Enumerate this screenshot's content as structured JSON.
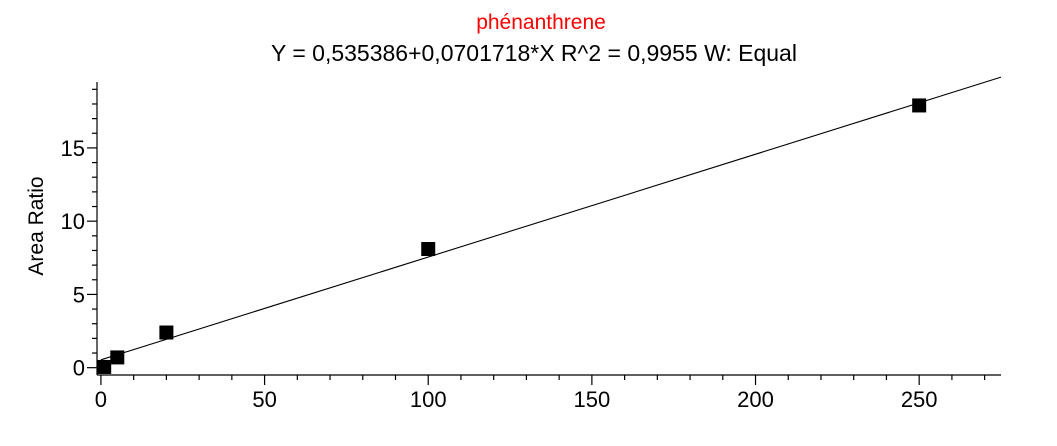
{
  "chart_data": {
    "type": "scatter",
    "title": "phénanthrene",
    "subtitle": "Y = 0,535386+0,0701718*X   R^2 = 0,9955   W: Equal",
    "xlabel": "",
    "ylabel": "Area Ratio",
    "xlim": [
      -1.2,
      275
    ],
    "ylim": [
      -0.5,
      19.5
    ],
    "x_ticks": [
      0,
      50,
      100,
      150,
      200,
      250
    ],
    "y_ticks": [
      0,
      5,
      10,
      15
    ],
    "x_minor_step": 10,
    "y_minor_step": 1,
    "fit": {
      "intercept": 0.535386,
      "slope": 0.0701718
    },
    "series": [
      {
        "x": [
          1,
          5,
          20,
          100,
          250
        ],
        "y": [
          0.05,
          0.7,
          2.4,
          8.1,
          17.9
        ]
      }
    ],
    "grid": false,
    "colors": {
      "title": "#ff0000",
      "axis": "#000000",
      "points": "#000000"
    }
  }
}
